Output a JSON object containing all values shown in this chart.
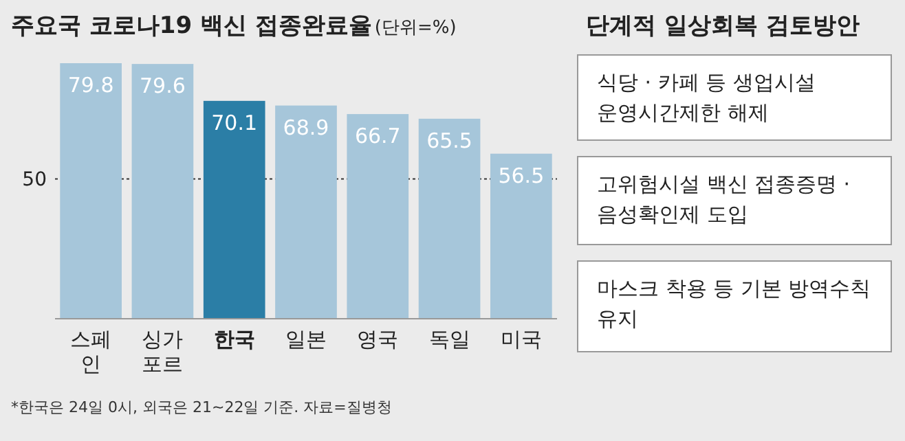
{
  "chart_data": [
    {
      "type": "bar",
      "title": "주요국 코로나19 백신 접종완료율",
      "subtitle": "(단위=%)",
      "categories": [
        "스페인",
        "싱가포르",
        "**한국**",
        "일본",
        "영국",
        "독일",
        "미국"
      ],
      "values": [
        79.8,
        79.6,
        70.1,
        68.9,
        66.7,
        65.5,
        56.5
      ],
      "colors": [
        "#a6c6da",
        "#a6c6da",
        "#2b7ea6",
        "#a6c6da",
        "#a6c6da",
        "#a6c6da",
        "#a6c6da"
      ],
      "ylim": [
        14,
        79.8
      ],
      "data_labels": true,
      "ref_lines": [
        {
          "axis": "y",
          "value": 50,
          "label": "50",
          "line_style": "dotted",
          "color": "#333333"
        }
      ],
      "annotations": [
        "*한국은 24일 0시, 외국은 21~22일 기준. 자료=질병청"
      ]
    },
    {
      "type": "other",
      "title": "단계적 일상회복 검토방안",
      "annotations": [
        "식당 · 카페 등 생업시설 운영시간제한 해제",
        "고위험시설 백신 접종증명 · 음성확인제 도입",
        "마스크 착용 등 기본 방역수칙 유지"
      ]
    }
  ]
}
